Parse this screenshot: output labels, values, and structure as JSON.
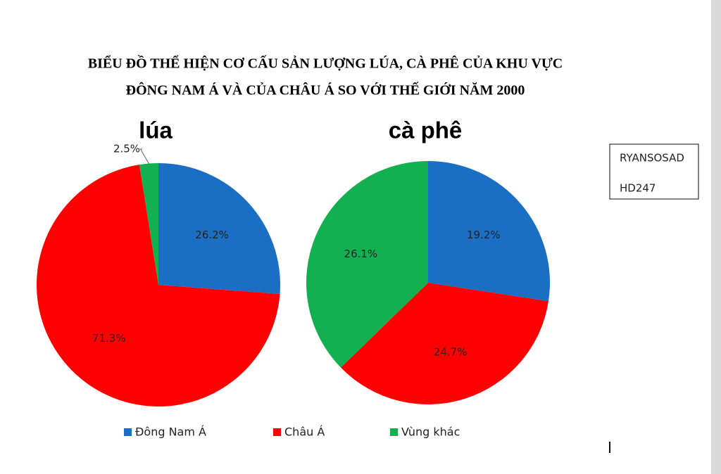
{
  "title": [
    "BIỂU ĐỒ THỂ HIỆN CƠ CẤU SẢN LƯỢNG LÚA, CÀ PHÊ CỦA KHU VỰC",
    "ĐÔNG NAM Á VÀ CỦA CHÂU Á SO VỚI THẾ GIỚI NĂM 2000"
  ],
  "chart_data": [
    {
      "type": "pie",
      "title": "lúa",
      "categories": [
        "Đông Nam Á",
        "Châu Á",
        "Vùng khác"
      ],
      "values": [
        26.2,
        71.3,
        2.5
      ],
      "value_labels": [
        "26.2%",
        "71.3%",
        "2.5%"
      ],
      "colors": [
        "#1a6fc4",
        "#ff0000",
        "#12b050"
      ]
    },
    {
      "type": "pie",
      "title": "cà phê",
      "categories": [
        "Đông Nam Á",
        "Châu Á",
        "Vùng khác"
      ],
      "values": [
        19.2,
        24.7,
        26.1
      ],
      "value_labels": [
        "19.2%",
        "24.7%",
        "26.1%"
      ],
      "colors": [
        "#1a6fc4",
        "#ff0000",
        "#12b050"
      ]
    }
  ],
  "note": [
    "RYANSOSAD",
    "HD247"
  ]
}
